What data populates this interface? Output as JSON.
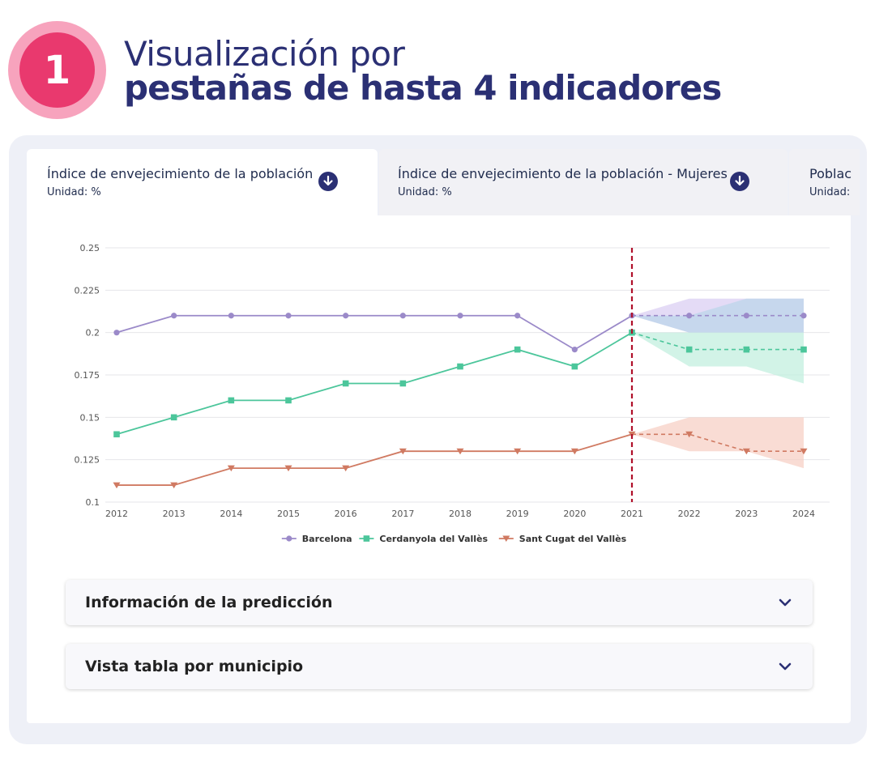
{
  "hero": {
    "badge_number": "1",
    "line1": "Visualización por",
    "line2": "pestañas de hasta 4 indicadores",
    "badge_color": "#e9396e",
    "text_color": "#2b3074"
  },
  "tabs": [
    {
      "title": "Índice de envejecimiento de la población",
      "unit": "Unidad: %",
      "active": true,
      "icon": "download-icon"
    },
    {
      "title": "Índice de envejecimiento de la población - Mujeres",
      "unit": "Unidad: %",
      "active": false,
      "icon": "download-icon"
    },
    {
      "title": "Poblac",
      "unit": "Unidad:",
      "active": false
    }
  ],
  "chart_data": {
    "type": "line",
    "categories": [
      "2012",
      "2013",
      "2014",
      "2015",
      "2016",
      "2017",
      "2018",
      "2019",
      "2020",
      "2021",
      "2022",
      "2023",
      "2024"
    ],
    "y_ticks": [
      "0.1",
      "0.125",
      "0.15",
      "0.175",
      "0.2",
      "0.225",
      "0.25"
    ],
    "ylim": [
      0.1,
      0.25
    ],
    "grid": "horizontal",
    "forecast_start": "2021",
    "legend_position": "bottom",
    "series": [
      {
        "name": "Barcelona",
        "color": "#9b8ac9",
        "marker": "circle",
        "values": [
          0.2,
          0.21,
          0.21,
          0.21,
          0.21,
          0.21,
          0.21,
          0.21,
          0.19,
          0.21,
          0.21,
          0.21,
          0.21
        ],
        "band_low": [
          null,
          null,
          null,
          null,
          null,
          null,
          null,
          null,
          null,
          0.21,
          0.2,
          0.2,
          0.2
        ],
        "band_high": [
          null,
          null,
          null,
          null,
          null,
          null,
          null,
          null,
          null,
          0.21,
          0.22,
          0.22,
          0.22
        ]
      },
      {
        "name": "Cerdanyola del Vallès",
        "color": "#4cc69b",
        "marker": "square",
        "values": [
          0.14,
          0.15,
          0.16,
          0.16,
          0.17,
          0.17,
          0.18,
          0.19,
          0.18,
          0.2,
          0.19,
          0.19,
          0.19
        ],
        "band_low": [
          null,
          null,
          null,
          null,
          null,
          null,
          null,
          null,
          null,
          0.2,
          0.18,
          0.18,
          0.17
        ],
        "band_high": [
          null,
          null,
          null,
          null,
          null,
          null,
          null,
          null,
          null,
          0.2,
          0.2,
          0.2,
          0.2
        ]
      },
      {
        "name": "Sant Cugat del Vallès",
        "color": "#d07a62",
        "marker": "triangle-down",
        "values": [
          0.11,
          0.11,
          0.12,
          0.12,
          0.12,
          0.13,
          0.13,
          0.13,
          0.13,
          0.14,
          0.14,
          0.13,
          0.13
        ],
        "band_low": [
          null,
          null,
          null,
          null,
          null,
          null,
          null,
          null,
          null,
          0.14,
          0.13,
          0.13,
          0.12
        ],
        "band_high": [
          null,
          null,
          null,
          null,
          null,
          null,
          null,
          null,
          null,
          0.14,
          0.15,
          0.15,
          0.15
        ]
      }
    ],
    "band_colors": [
      "#d9ccf2",
      "#bfeedd",
      "#f6cdc2"
    ],
    "band_extra": {
      "color": "#b9d6ea",
      "low": [
        null,
        null,
        null,
        null,
        null,
        null,
        null,
        null,
        null,
        0.21,
        0.2,
        0.2,
        0.2
      ],
      "high": [
        null,
        null,
        null,
        null,
        null,
        null,
        null,
        null,
        null,
        0.21,
        0.21,
        0.22,
        0.22
      ]
    },
    "forecast_line_color": "#b0102a"
  },
  "accordions": [
    {
      "label": "Información de la predicción",
      "icon": "chevron-down-icon"
    },
    {
      "label": "Vista tabla por municipio",
      "icon": "chevron-down-icon"
    }
  ]
}
